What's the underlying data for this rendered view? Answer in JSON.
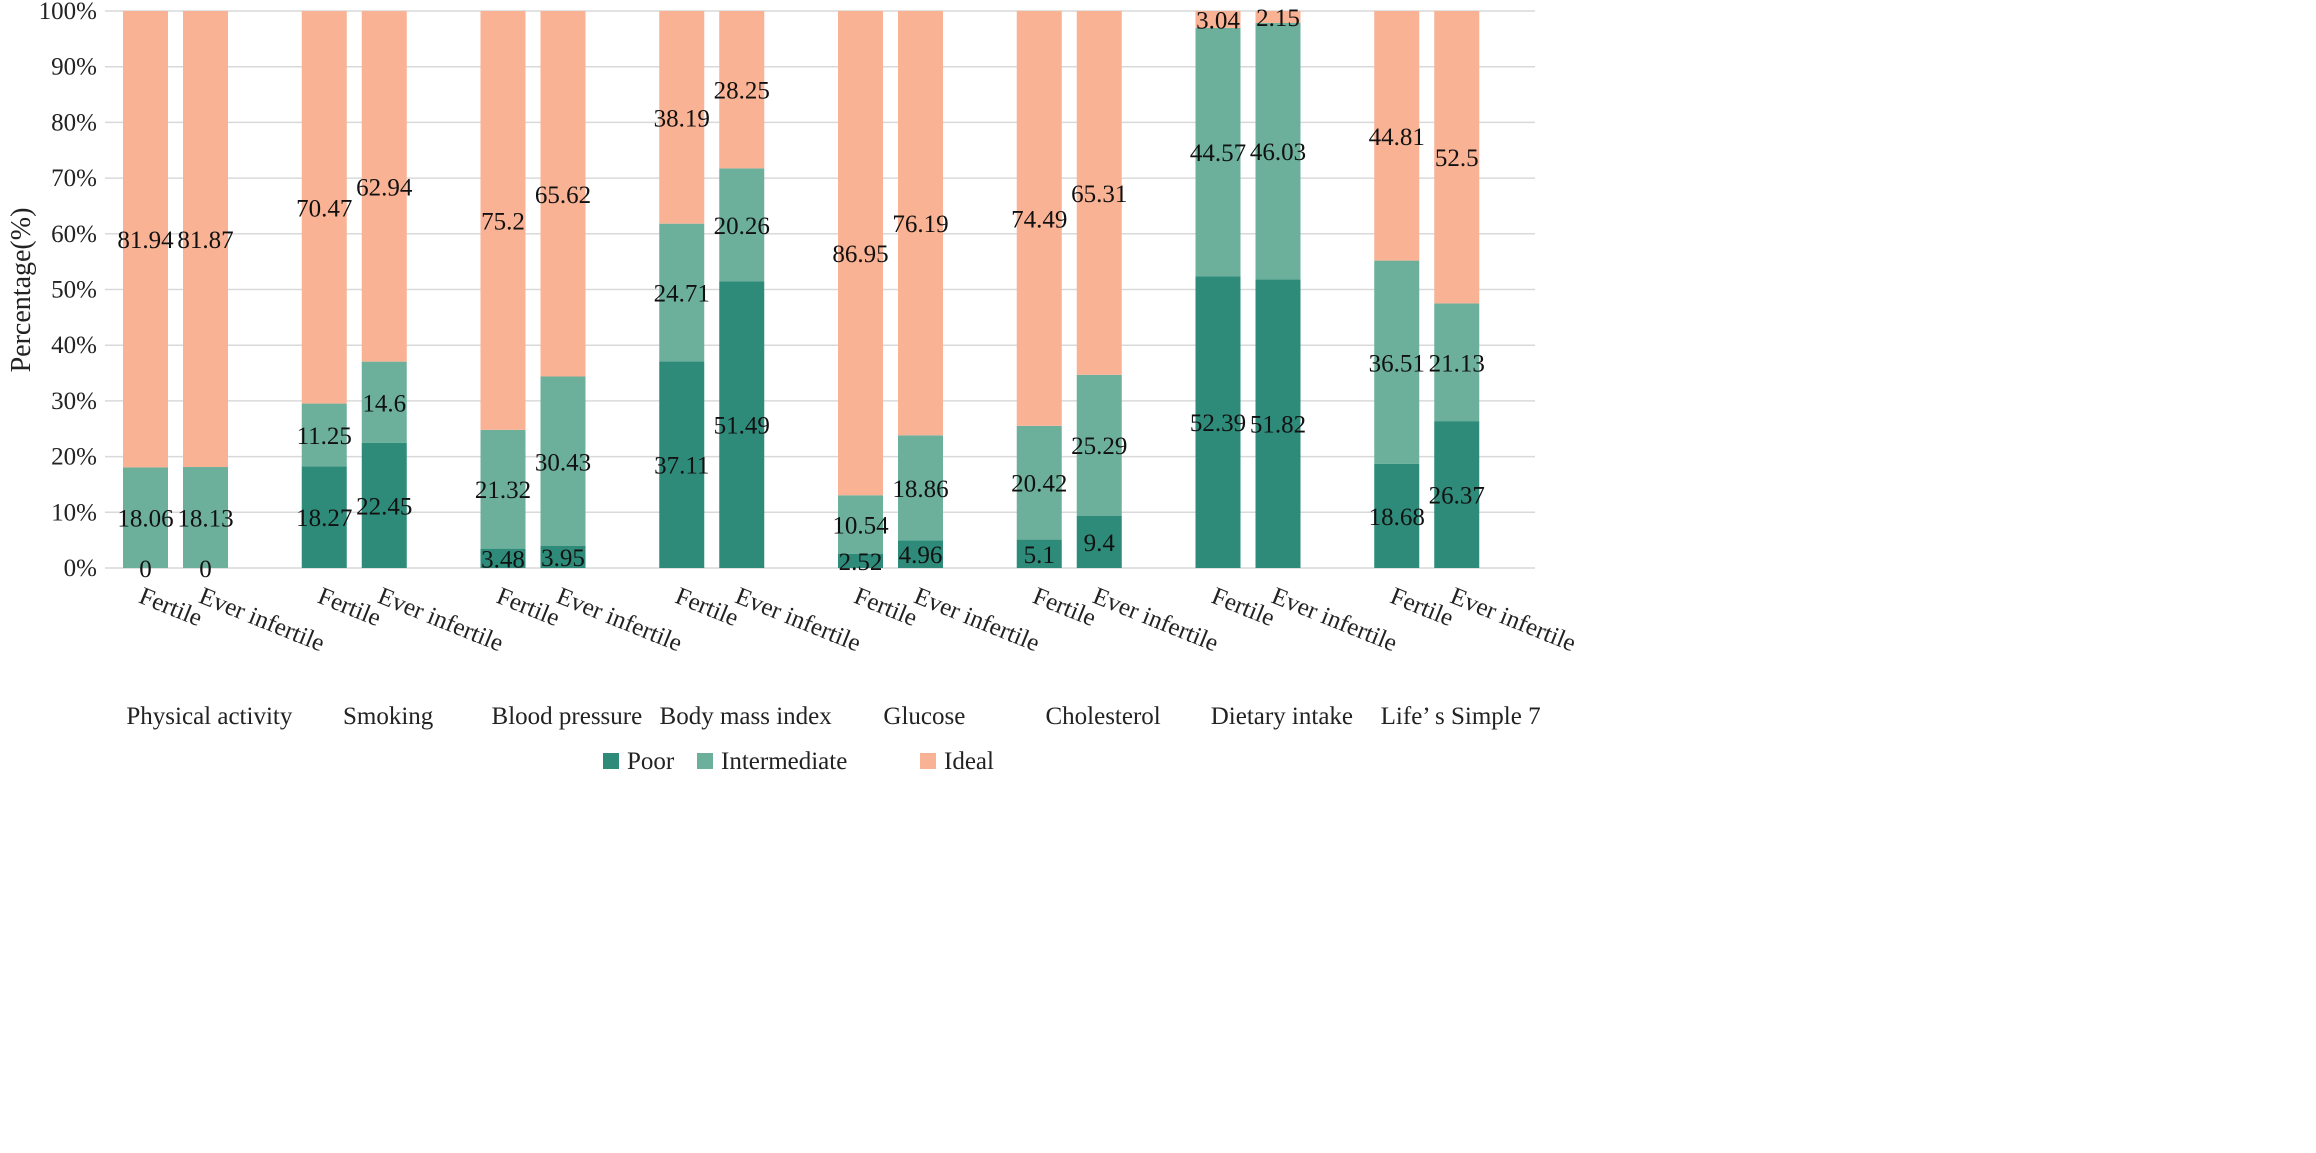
{
  "chart_data": {
    "type": "bar",
    "stacked": true,
    "ylabel": "Percentage(%)",
    "ylim": [
      0,
      100
    ],
    "yticks": [
      "0%",
      "10%",
      "20%",
      "30%",
      "40%",
      "50%",
      "60%",
      "70%",
      "80%",
      "90%",
      "100%"
    ],
    "grid": true,
    "legend_position": "bottom",
    "colors": {
      "Poor": "#2e8b79",
      "Intermediate": "#6cb09c",
      "Ideal": "#f9b294"
    },
    "series_names": [
      "Poor",
      "Intermediate",
      "Ideal"
    ],
    "groups": [
      {
        "name": "Physical activity",
        "bars": [
          {
            "label": "Fertile",
            "Poor": 0,
            "Intermediate": 18.06,
            "Ideal": 81.94,
            "labels": [
              "0",
              "18.06",
              "81.94"
            ]
          },
          {
            "label": "Ever infertile",
            "Poor": 0,
            "Intermediate": 18.13,
            "Ideal": 81.87,
            "labels": [
              "0",
              "18.13",
              "81.87"
            ]
          }
        ]
      },
      {
        "name": "Smoking",
        "bars": [
          {
            "label": "Fertile",
            "Poor": 18.27,
            "Intermediate": 11.25,
            "Ideal": 70.47,
            "labels": [
              "18.27",
              "11.25",
              "70.47"
            ]
          },
          {
            "label": "Ever infertile",
            "Poor": 22.45,
            "Intermediate": 14.6,
            "Ideal": 62.94,
            "labels": [
              "22.45",
              "14.6",
              "62.94"
            ]
          }
        ]
      },
      {
        "name": "Blood pressure",
        "bars": [
          {
            "label": "Fertile",
            "Poor": 3.48,
            "Intermediate": 21.32,
            "Ideal": 75.2,
            "labels": [
              "3.48",
              "21.32",
              "75.2"
            ]
          },
          {
            "label": "Ever infertile",
            "Poor": 3.95,
            "Intermediate": 30.43,
            "Ideal": 65.62,
            "labels": [
              "3.95",
              "30.43",
              "65.62"
            ]
          }
        ]
      },
      {
        "name": "Body mass index",
        "bars": [
          {
            "label": "Fertile",
            "Poor": 37.11,
            "Intermediate": 24.71,
            "Ideal": 38.19,
            "labels": [
              "37.11",
              "24.71",
              "38.19"
            ]
          },
          {
            "label": "Ever infertile",
            "Poor": 51.49,
            "Intermediate": 20.26,
            "Ideal": 28.25,
            "labels": [
              "51.49",
              "20.26",
              "28.25"
            ]
          }
        ]
      },
      {
        "name": "Glucose",
        "bars": [
          {
            "label": "Fertile",
            "Poor": 2.52,
            "Intermediate": 10.54,
            "Ideal": 86.95,
            "labels": [
              "2.52",
              "10.54",
              "86.95"
            ]
          },
          {
            "label": "Ever infertile",
            "Poor": 4.96,
            "Intermediate": 18.86,
            "Ideal": 76.19,
            "labels": [
              "4.96",
              "18.86",
              "76.19"
            ]
          }
        ]
      },
      {
        "name": "Cholesterol",
        "bars": [
          {
            "label": "Fertile",
            "Poor": 5.1,
            "Intermediate": 20.42,
            "Ideal": 74.49,
            "labels": [
              "5.1",
              "20.42",
              "74.49"
            ]
          },
          {
            "label": "Ever infertile",
            "Poor": 9.4,
            "Intermediate": 25.29,
            "Ideal": 65.31,
            "labels": [
              "9.4",
              "25.29",
              "65.31"
            ]
          }
        ]
      },
      {
        "name": "Dietary intake",
        "bars": [
          {
            "label": "Fertile",
            "Poor": 52.39,
            "Intermediate": 44.57,
            "Ideal": 3.04,
            "labels": [
              "52.39",
              "44.57",
              "3.04"
            ]
          },
          {
            "label": "Ever infertile",
            "Poor": 51.82,
            "Intermediate": 46.03,
            "Ideal": 2.15,
            "labels": [
              "51.82",
              "46.03",
              "2.15"
            ]
          }
        ]
      },
      {
        "name": "Life’ s Simple 7",
        "bars": [
          {
            "label": "Fertile",
            "Poor": 18.68,
            "Intermediate": 36.51,
            "Ideal": 44.81,
            "labels": [
              "18.68",
              "36.51",
              "44.81"
            ]
          },
          {
            "label": "Ever infertile",
            "Poor": 26.37,
            "Intermediate": 21.13,
            "Ideal": 52.5,
            "labels": [
              "26.37",
              "21.13",
              "52.5"
            ]
          }
        ]
      }
    ]
  }
}
